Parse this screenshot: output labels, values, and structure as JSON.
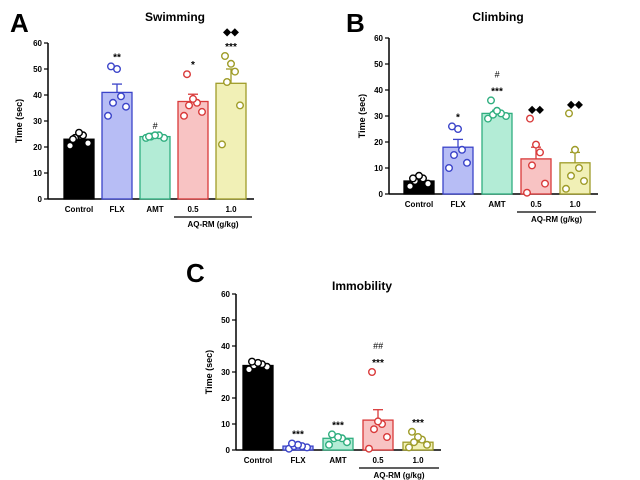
{
  "chart_data": [
    {
      "type": "bar",
      "panel": "A",
      "title": "Swimming",
      "ylabel": "Time (sec)",
      "ylim": [
        0,
        60
      ],
      "yticks": [
        "0",
        "10",
        "20",
        "30",
        "40",
        "50",
        "60"
      ],
      "categories": [
        "Control",
        "FLX",
        "AMT",
        "0.5",
        "1.0"
      ],
      "group_label": "AQ-RM  (g/kg)",
      "colors": {
        "fills": [
          "#000000",
          "#b7bdf5",
          "#b3ecd6",
          "#f8c3c3",
          "#f1f0b6"
        ],
        "strokes": [
          "#000000",
          "#3b44c9",
          "#2fae7f",
          "#d93a3a",
          "#9f9c29"
        ]
      },
      "values": [
        23,
        41,
        24,
        37.5,
        44.5
      ],
      "errors": [
        1.2,
        3.2,
        0.7,
        2.8,
        5.5
      ],
      "points": [
        [
          20.5,
          21.5,
          23.5,
          24.5,
          25.5,
          23
        ],
        [
          32,
          35.5,
          37,
          39.5,
          50,
          51
        ],
        [
          23.5,
          23.5,
          24,
          24.5,
          24.5,
          24
        ],
        [
          32,
          33.5,
          36,
          37,
          38.5,
          48
        ],
        [
          21,
          36,
          45,
          49,
          52,
          55
        ]
      ],
      "stars": [
        "",
        "**",
        "",
        "*",
        "***"
      ],
      "hashes": [
        "",
        "",
        "#",
        "",
        ""
      ],
      "diamonds": [
        "",
        "",
        "",
        "",
        "◆◆"
      ]
    },
    {
      "type": "bar",
      "panel": "B",
      "title": "Climbing",
      "ylabel": "Time (sec)",
      "ylim": [
        0,
        60
      ],
      "yticks": [
        "0",
        "10",
        "20",
        "30",
        "40",
        "50",
        "60"
      ],
      "categories": [
        "Control",
        "FLX",
        "AMT",
        "0.5",
        "1.0"
      ],
      "group_label": "AQ-RM  (g/kg)",
      "colors": {
        "fills": [
          "#000000",
          "#b7bdf5",
          "#b3ecd6",
          "#f8c3c3",
          "#f1f0b6"
        ],
        "strokes": [
          "#000000",
          "#3b44c9",
          "#2fae7f",
          "#d93a3a",
          "#9f9c29"
        ]
      },
      "values": [
        5,
        18,
        31,
        13.5,
        12
      ],
      "errors": [
        1.0,
        3.0,
        1.2,
        4.5,
        4.0
      ],
      "points": [
        [
          3,
          4,
          5,
          6,
          7,
          6
        ],
        [
          10,
          12,
          15,
          17,
          25,
          26
        ],
        [
          29,
          30,
          30.5,
          31,
          32,
          36
        ],
        [
          0.5,
          4,
          11,
          16,
          19,
          29
        ],
        [
          2,
          5,
          7,
          10,
          17,
          31
        ]
      ],
      "stars": [
        "",
        "*",
        "***",
        "",
        ""
      ],
      "hashes": [
        "",
        "",
        "#",
        "",
        ""
      ],
      "diamonds": [
        "",
        "",
        "",
        "◆◆",
        "◆◆"
      ]
    },
    {
      "type": "bar",
      "panel": "C",
      "title": "Immobility",
      "ylabel": "Time (sec)",
      "ylim": [
        0,
        60
      ],
      "yticks": [
        "0",
        "10",
        "20",
        "30",
        "40",
        "50",
        "60"
      ],
      "categories": [
        "Control",
        "FLX",
        "AMT",
        "0.5",
        "1.0"
      ],
      "group_label": "AQ-RM  (g/kg)",
      "colors": {
        "fills": [
          "#000000",
          "#b7bdf5",
          "#b3ecd6",
          "#f8c3c3",
          "#f1f0b6"
        ],
        "strokes": [
          "#000000",
          "#3b44c9",
          "#2fae7f",
          "#d93a3a",
          "#9f9c29"
        ]
      },
      "values": [
        32.5,
        1.5,
        4.5,
        11.5,
        3
      ],
      "errors": [
        0.6,
        0.5,
        0.9,
        4.0,
        0.9
      ],
      "points": [
        [
          31,
          32,
          32.5,
          33,
          33.5,
          34
        ],
        [
          0.5,
          1,
          1.5,
          1.5,
          2,
          2.5
        ],
        [
          2,
          3,
          4.5,
          4.5,
          5,
          6
        ],
        [
          0.5,
          5,
          8,
          10,
          11,
          30
        ],
        [
          1,
          2,
          3,
          4,
          5,
          7
        ]
      ],
      "stars": [
        "",
        "***",
        "***",
        "***",
        "***"
      ],
      "hashes": [
        "",
        "",
        "",
        "##",
        ""
      ],
      "diamonds": [
        "",
        "",
        "",
        "",
        ""
      ]
    }
  ]
}
